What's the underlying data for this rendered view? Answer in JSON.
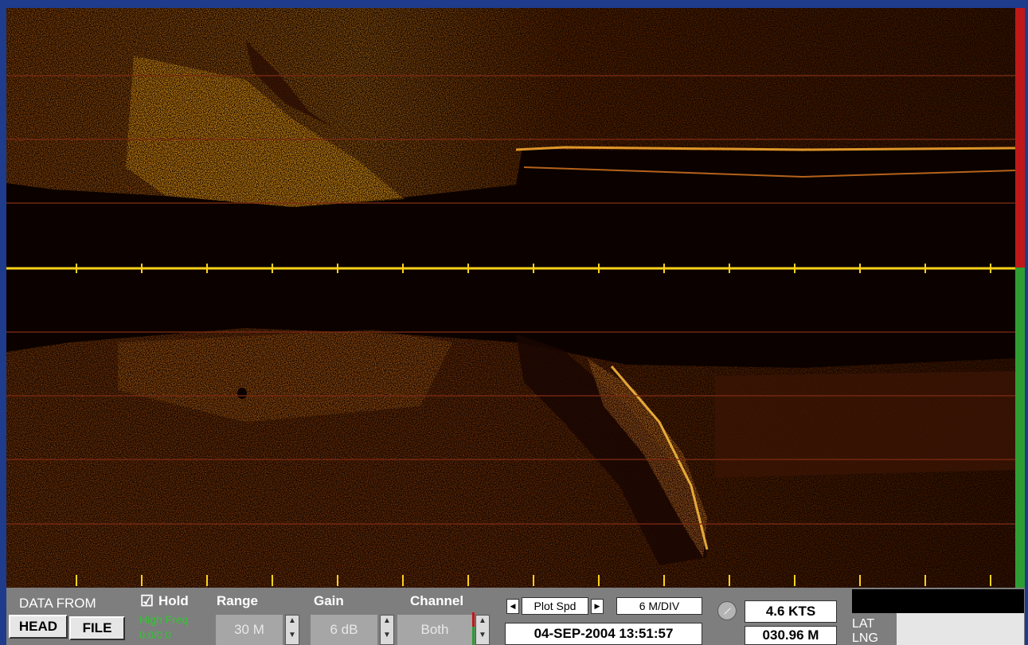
{
  "sonar": {
    "colors": {
      "background": "#0b0200",
      "seafloor": "#8a3a05",
      "bright": "#ffc21a",
      "grid": "#7a2a12",
      "centerline": "#ffd21a",
      "port_indicator": "#c01818",
      "starboard_indicator": "#2e9e32"
    }
  },
  "panel": {
    "data_from_label": "DATA FROM",
    "head_button": "HEAD",
    "file_button": "FILE",
    "hold_checkbox": "☑",
    "hold_label": "Hold",
    "freq_label": "High Freq",
    "freq_value": "0.0/0.0",
    "range_label": "Range",
    "range_value": "30 M",
    "gain_label": "Gain",
    "gain_value": "6 dB",
    "channel_label": "Channel",
    "channel_value": "Both",
    "plot_spd_label": "Plot Spd",
    "plot_spd_value": "6 M/DIV",
    "datetime": "04-SEP-2004  13:51:57",
    "speed": "4.6 KTS",
    "distance": "030.96 M",
    "lat_label": "LAT",
    "lng_label": "LNG"
  }
}
